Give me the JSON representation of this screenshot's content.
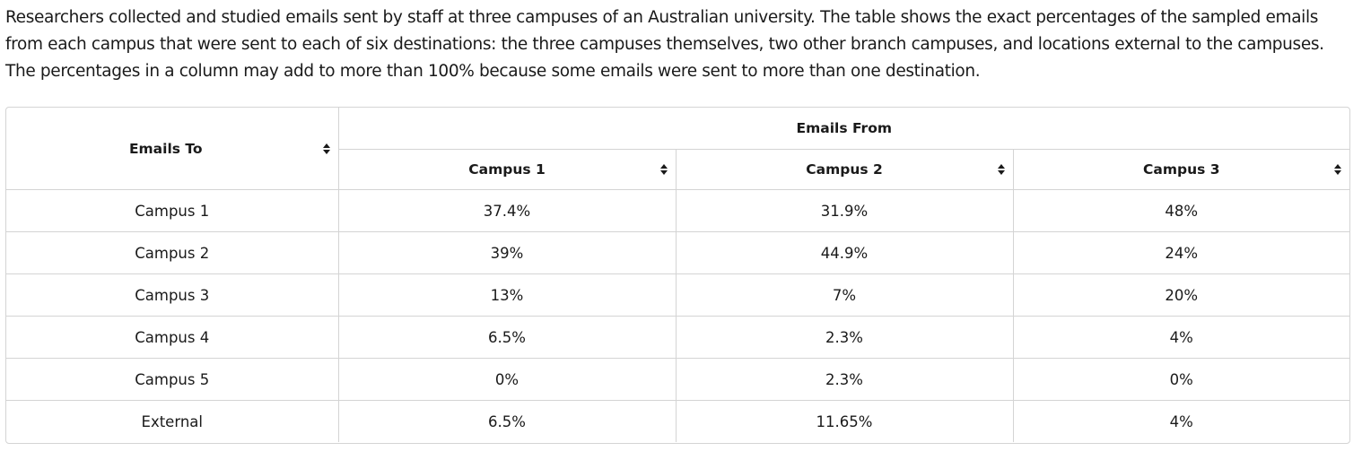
{
  "intro": {
    "text": "Researchers collected and studied emails sent by staff at three campuses of an Australian university. The table shows the exact percentages of the sampled emails from each campus that were sent to each of six destinations: the three campuses themselves, two other branch campuses, and locations external to the campuses. The percentages in a column may add to more than 100% because some emails were sent to more than one destination."
  },
  "table": {
    "row_header": "Emails To",
    "group_header": "Emails From",
    "columns": [
      "Campus 1",
      "Campus 2",
      "Campus 3"
    ],
    "rows": [
      {
        "label": "Campus 1",
        "values": [
          "37.4%",
          "31.9%",
          "48%"
        ]
      },
      {
        "label": "Campus 2",
        "values": [
          "39%",
          "44.9%",
          "24%"
        ]
      },
      {
        "label": "Campus 3",
        "values": [
          "13%",
          "7%",
          "20%"
        ]
      },
      {
        "label": "Campus 4",
        "values": [
          "6.5%",
          "2.3%",
          "4%"
        ]
      },
      {
        "label": "Campus 5",
        "values": [
          "0%",
          "2.3%",
          "0%"
        ]
      },
      {
        "label": "External",
        "values": [
          "6.5%",
          "11.65%",
          "4%"
        ]
      }
    ]
  },
  "icons": {
    "sort": "sort-icon"
  },
  "colors": {
    "border": "#d4d4d4",
    "text": "#1a1a1a"
  }
}
